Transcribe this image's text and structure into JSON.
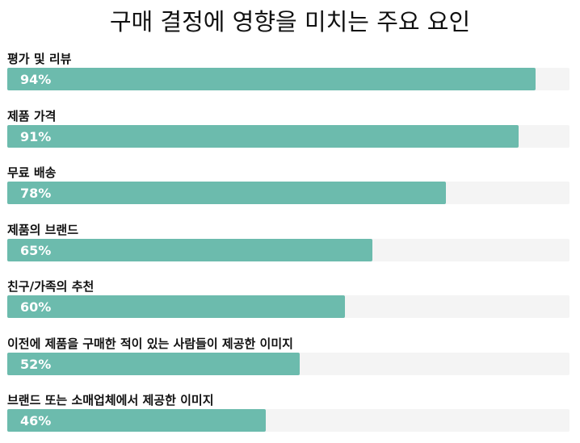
{
  "chart_data": {
    "type": "bar",
    "orientation": "horizontal",
    "title": "구매 결정에 영향을 미치는 주요 요인",
    "xlabel": "",
    "ylabel": "",
    "xlim": [
      0,
      100
    ],
    "grid": false,
    "legend": null,
    "categories": [
      "평가 및 리뷰",
      "제품 가격",
      "무료 배송",
      "제품의 브랜드",
      "친구/가족의 추천",
      "이전에 제품을 구매한 적이 있는 사람들이 제공한 이미지",
      "브랜드 또는 소매업체에서 제공한 이미지"
    ],
    "values": [
      94,
      91,
      78,
      65,
      60,
      52,
      46
    ],
    "value_labels": [
      "94%",
      "91%",
      "78%",
      "65%",
      "60%",
      "52%",
      "46%"
    ],
    "bar_color": "#6cbbad",
    "track_color": "#f4f4f4"
  }
}
